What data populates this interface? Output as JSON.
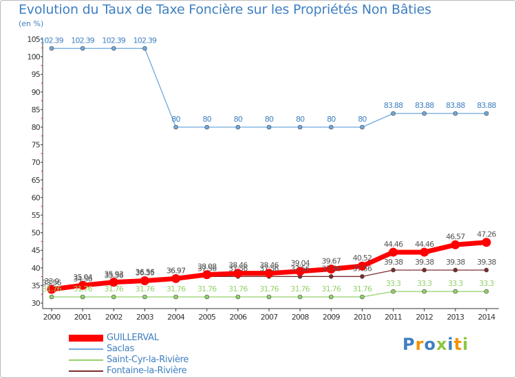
{
  "header": {
    "title": "Evolution du Taux de Taxe Foncière sur les Propriétés Non Bâties",
    "unit": "(en %)"
  },
  "logo": {
    "text": "Proxiti",
    "colors": [
      "#3e7fc1",
      "#f39200",
      "#3e7fc1",
      "#8cc63f",
      "#3e7fc1",
      "#f39200",
      "#8cc63f"
    ]
  },
  "chart_data": {
    "type": "line",
    "x": [
      2000,
      2001,
      2002,
      2003,
      2004,
      2005,
      2006,
      2007,
      2008,
      2009,
      2010,
      2011,
      2012,
      2013,
      2014
    ],
    "ylim": [
      30,
      105
    ],
    "yticks": [
      30,
      35,
      40,
      45,
      50,
      55,
      60,
      65,
      70,
      75,
      80,
      85,
      90,
      95,
      100,
      105
    ],
    "grid": false,
    "legend_position": "bottom-left",
    "series": [
      {
        "name": "GUILLERVAL",
        "color": "#ff0000",
        "values": [
          33.9,
          35.04,
          35.93,
          36.35,
          36.97,
          38.08,
          38.46,
          38.46,
          39.04,
          39.67,
          40.52,
          44.46,
          44.46,
          46.57,
          47.26
        ],
        "labels": [
          "33.9",
          "35.04",
          "35.93",
          "36.35",
          "36.97",
          "38.08",
          "38.46",
          "38.46",
          "39.04",
          "39.67",
          "40.52",
          "44.46",
          "44.46",
          "46.57",
          "47.26"
        ]
      },
      {
        "name": "Saclas",
        "color": "#6fa8dc",
        "values": [
          102.39,
          102.39,
          102.39,
          102.39,
          80,
          80,
          80,
          80,
          80,
          80,
          80,
          83.88,
          83.88,
          83.88,
          83.88
        ],
        "labels": [
          "102.39",
          "102.39",
          "102.39",
          "102.39",
          "80",
          "80",
          "80",
          "80",
          "80",
          "80",
          "80",
          "83.88",
          "83.88",
          "83.88",
          "83.88"
        ]
      },
      {
        "name": "Saint-Cyr-la-Rivière",
        "color": "#93d16a",
        "values": [
          31.76,
          31.76,
          31.76,
          31.76,
          31.76,
          31.76,
          31.76,
          31.76,
          31.76,
          31.76,
          31.76,
          33.3,
          33.3,
          33.3,
          33.3
        ],
        "labels": [
          "31.76",
          "31.76",
          "31.76",
          "31.76",
          "31.76",
          "31.76",
          "31.76",
          "31.76",
          "31.76",
          "31.76",
          "31.76",
          "33.3",
          "33.3",
          "33.3",
          "33.3"
        ]
      },
      {
        "name": "Fontaine-la-Rivière",
        "color": "#7b2c2c",
        "values": [
          33.56,
          34.56,
          35.56,
          36.56,
          36.97,
          37.56,
          37.56,
          37.56,
          37.56,
          37.56,
          37.56,
          39.38,
          39.38,
          39.38,
          39.38
        ],
        "labels": [
          "33.56",
          "34.56",
          "35.56",
          "36.56",
          "36.97",
          "37.56",
          "37.56",
          "37.56",
          "37.56",
          "37.56",
          "37.56",
          "39.38",
          "39.38",
          "39.38",
          "39.38"
        ]
      }
    ]
  }
}
